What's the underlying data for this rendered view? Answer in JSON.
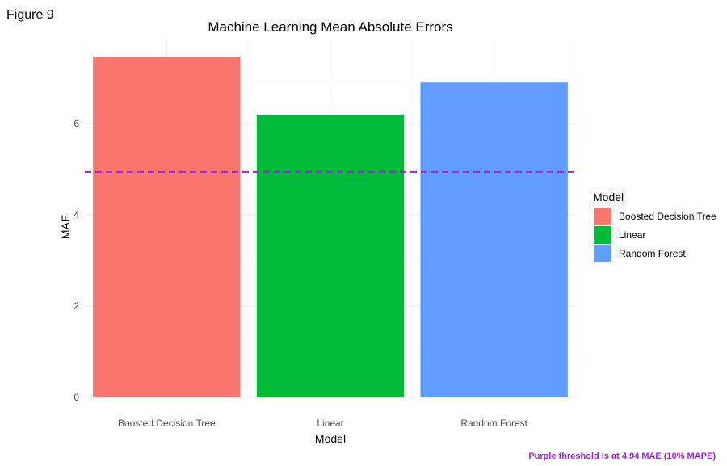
{
  "figure_label": "Figure 9",
  "caption": "Purple threshold is at 4.94 MAE (10% MAPE)",
  "colors": {
    "threshold": "#a020f0",
    "caption": "#a020f0",
    "grid_major": "#ebebeb",
    "grid_minor": "#f5f5f5"
  },
  "chart_data": {
    "type": "bar",
    "title": "Machine Learning Mean Absolute Errors",
    "xlabel": "Model",
    "ylabel": "MAE",
    "categories": [
      "Boosted Decision Tree",
      "Linear",
      "Random Forest"
    ],
    "values": [
      7.47,
      6.19,
      6.9
    ],
    "colors": [
      "#f8766d",
      "#00ba38",
      "#619cff"
    ],
    "ylim": [
      0,
      7.47
    ],
    "yticks": [
      0,
      2,
      4,
      6
    ],
    "threshold": 4.94,
    "grid": true,
    "legend": {
      "title": "Model",
      "position": "right",
      "items": [
        "Boosted Decision Tree",
        "Linear",
        "Random Forest"
      ]
    }
  }
}
